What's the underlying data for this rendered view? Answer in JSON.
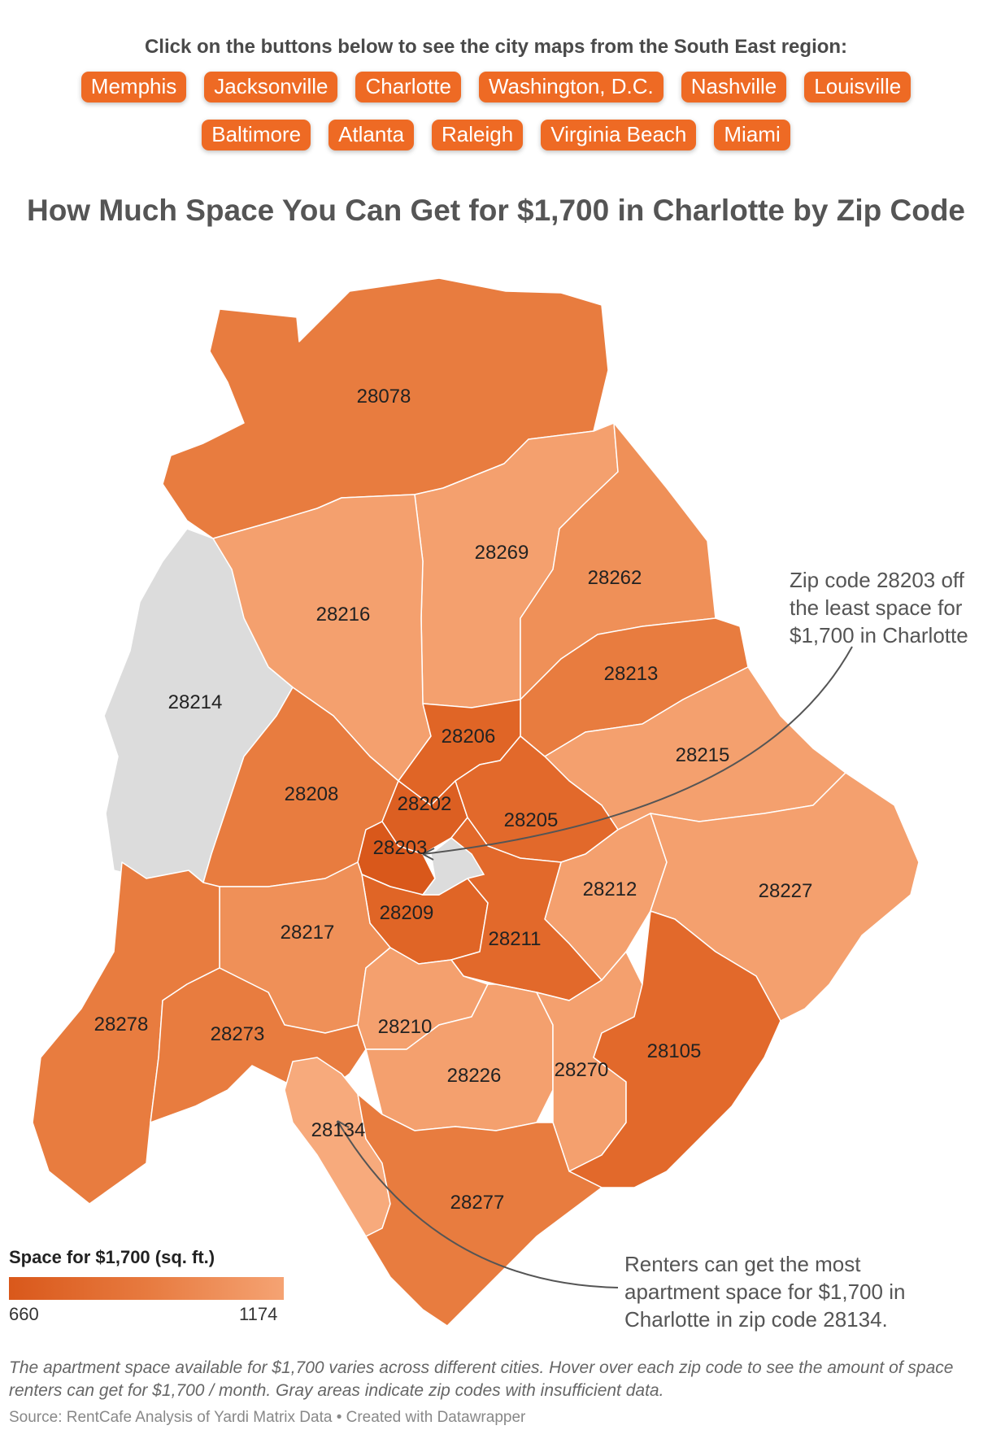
{
  "intro_text": "Click on the buttons below to see the city maps from the South East region:",
  "buttons_row1": [
    "Memphis",
    "Jacksonville",
    "Charlotte",
    "Washington, D.C.",
    "Nashville",
    "Louisville"
  ],
  "buttons_row2": [
    "Baltimore",
    "Atlanta",
    "Raleigh",
    "Virginia Beach",
    "Miami"
  ],
  "title": "How Much Space You Can Get for $1,700 in Charlotte by Zip Code",
  "zip_codes": [
    {
      "zip": "28078",
      "shade": "mid"
    },
    {
      "zip": "28269",
      "shade": "light"
    },
    {
      "zip": "28262",
      "shade": "midlight"
    },
    {
      "zip": "28216",
      "shade": "light"
    },
    {
      "zip": "28214",
      "shade": "nodata"
    },
    {
      "zip": "28213",
      "shade": "mid"
    },
    {
      "zip": "28206",
      "shade": "dark"
    },
    {
      "zip": "28215",
      "shade": "light"
    },
    {
      "zip": "28208",
      "shade": "mid"
    },
    {
      "zip": "28202",
      "shade": "darker"
    },
    {
      "zip": "28205",
      "shade": "middark"
    },
    {
      "zip": "28203",
      "shade": "darkest"
    },
    {
      "zip": "28212",
      "shade": "light"
    },
    {
      "zip": "28227",
      "shade": "light"
    },
    {
      "zip": "28209",
      "shade": "dark"
    },
    {
      "zip": "28217",
      "shade": "midlight"
    },
    {
      "zip": "28211",
      "shade": "middark"
    },
    {
      "zip": "28278",
      "shade": "mid"
    },
    {
      "zip": "28273",
      "shade": "mid"
    },
    {
      "zip": "28210",
      "shade": "light"
    },
    {
      "zip": "28226",
      "shade": "light"
    },
    {
      "zip": "28270",
      "shade": "light"
    },
    {
      "zip": "28105",
      "shade": "middark"
    },
    {
      "zip": "28134",
      "shade": "lightest"
    },
    {
      "zip": "28277",
      "shade": "mid"
    }
  ],
  "colors": {
    "darkest": "#d9581b",
    "darker": "#dc5f22",
    "dark": "#e06526",
    "middark": "#e2692b",
    "mid": "#e87c3f",
    "midlight": "#ef9058",
    "light": "#f4a06e",
    "lightest": "#f7aa7c",
    "nodata": "#dcdcdc"
  },
  "legend": {
    "title": "Space for $1,700 (sq. ft.)",
    "min": "660",
    "max": "1174"
  },
  "annotations": {
    "least": [
      "Zip code 28203 off",
      "the least space for",
      "$1,700 in Charlotte"
    ],
    "most": [
      "Renters can get the most",
      "apartment space for $1,700 in",
      "Charlotte in zip code 28134."
    ]
  },
  "note": "The apartment space available for $1,700 varies across different cities. Hover over each zip code to see the amount of space renters can get for $1,700 / month. Gray areas indicate zip codes with insufficient data.",
  "source": "Source: RentCafe Analysis of Yardi Matrix Data • Created with Datawrapper"
}
